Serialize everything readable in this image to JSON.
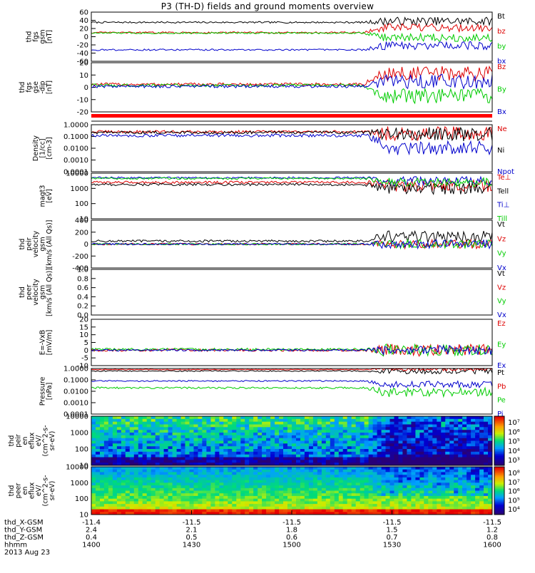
{
  "title": "P3 (TH-D) fields and ground moments overview",
  "colors": {
    "black": "#000000",
    "red": "#dd0000",
    "green": "#00cc00",
    "blue": "#0000cc",
    "bar_red": "#ff0000"
  },
  "chart_data": [
    {
      "type": "line",
      "id": "fgs_gsm",
      "ylabel": [
        "thd",
        "fgs",
        "gsm",
        "[nT]"
      ],
      "yticks": [
        "60",
        "40",
        "20",
        "0",
        "-20",
        "-40",
        "-60"
      ],
      "ylim": [
        -60,
        60
      ],
      "series": [
        {
          "name": "Bt",
          "color": "black",
          "level": 35,
          "noise": 2,
          "late_level": 38
        },
        {
          "name": "bz",
          "color": "red",
          "level": 10,
          "noise": 2,
          "late_level": 22
        },
        {
          "name": "by",
          "color": "green",
          "level": 9,
          "noise": 2,
          "late_level": -2
        },
        {
          "name": "bx",
          "color": "blue",
          "level": -32,
          "noise": 2,
          "late_level": -22
        }
      ]
    },
    {
      "type": "line",
      "id": "fgs_gse",
      "ylabel": [
        "thd",
        "fgs",
        "gse",
        "-dip",
        "[nT]"
      ],
      "yticks": [
        "20",
        "10",
        "0",
        "-10",
        "-20"
      ],
      "ylim": [
        -25,
        25
      ],
      "series": [
        {
          "name": "Bz",
          "color": "red",
          "level": 3,
          "noise": 1.5,
          "late_level": 14
        },
        {
          "name": "By",
          "color": "green",
          "level": 2,
          "noise": 1.5,
          "late_level": -9
        },
        {
          "name": "Bx",
          "color": "blue",
          "level": 1,
          "noise": 1.5,
          "late_level": 6
        }
      ]
    },
    {
      "type": "line",
      "id": "density",
      "log": true,
      "ylabel": [
        "Density",
        "[1/cc]",
        "[cm-3]"
      ],
      "yticks": [
        "1.0000",
        "0.1000",
        "0.0100",
        "0.0010",
        "0.0001"
      ],
      "ylim": [
        0.0001,
        1
      ],
      "series": [
        {
          "name": "Ne",
          "color": "red",
          "level": 0.25,
          "noise": 0.12,
          "late_level": 0.18
        },
        {
          "name": "Ni",
          "color": "black",
          "level": 0.22,
          "noise": 0.12,
          "late_level": 0.15
        },
        {
          "name": "Npot",
          "color": "blue",
          "level": 0.12,
          "noise": 0.12,
          "late_level": 0.01
        }
      ]
    },
    {
      "type": "line",
      "id": "temperature",
      "log": true,
      "ylabel": [
        "magt3",
        "[eV]"
      ],
      "yticks": [
        "10000",
        "1000",
        "100",
        "10"
      ],
      "ylim": [
        10,
        10000
      ],
      "series": [
        {
          "name": "Te⊥",
          "color": "red",
          "level": 2500,
          "noise": 0.08,
          "late_level": 1500
        },
        {
          "name": "Tell",
          "color": "black",
          "level": 1800,
          "noise": 0.08,
          "late_level": 1000
        },
        {
          "name": "Ti⊥",
          "color": "blue",
          "level": 5000,
          "noise": 0.06,
          "late_level": 3000
        },
        {
          "name": "Till",
          "color": "green",
          "level": 4500,
          "noise": 0.06,
          "late_level": 2500
        }
      ]
    },
    {
      "type": "line",
      "id": "peir_velocity",
      "ylabel": [
        "thd",
        "peir",
        "velocity",
        "gsm",
        "[km/s (All Qs)]"
      ],
      "yticks": [
        "400",
        "200",
        "0",
        "-200",
        "-400"
      ],
      "ylim": [
        -400,
        400
      ],
      "series": [
        {
          "name": "Vt",
          "color": "black",
          "level": 50,
          "noise": 20,
          "late_level": 120
        },
        {
          "name": "Vz",
          "color": "red",
          "level": 0,
          "noise": 15,
          "late_level": 0
        },
        {
          "name": "Vy",
          "color": "green",
          "level": 0,
          "noise": 15,
          "late_level": 0
        },
        {
          "name": "Vx",
          "color": "blue",
          "level": 0,
          "noise": 15,
          "late_level": 0
        }
      ]
    },
    {
      "type": "line",
      "id": "peer_velocity",
      "empty": true,
      "ylabel": [
        "thd",
        "peer",
        "velocity",
        "gsm",
        "[km/s (All Qs)]"
      ],
      "yticks": [
        "1.0",
        "0.8",
        "0.6",
        "0.4",
        "0.2",
        "0.0"
      ],
      "ylim": [
        0,
        1
      ],
      "series": [
        {
          "name": "Vt",
          "color": "black"
        },
        {
          "name": "Vz",
          "color": "red"
        },
        {
          "name": "Vy",
          "color": "green"
        },
        {
          "name": "Vx",
          "color": "blue"
        }
      ]
    },
    {
      "type": "line",
      "id": "efield",
      "ylabel": [
        "E=-VxB",
        "[mV/m]"
      ],
      "yticks": [
        "20",
        "15",
        "10",
        "5",
        "0",
        "-5",
        "-10"
      ],
      "ylim": [
        -10,
        20
      ],
      "series": [
        {
          "name": "Ez",
          "color": "red",
          "level": 0,
          "noise": 0.8,
          "late_level": 0
        },
        {
          "name": "Ey",
          "color": "green",
          "level": 0.5,
          "noise": 0.8,
          "late_level": 0
        },
        {
          "name": "Ex",
          "color": "blue",
          "level": 0,
          "noise": 0.6,
          "late_level": 0
        }
      ]
    },
    {
      "type": "line",
      "id": "pressure",
      "log": true,
      "ylabel": [
        "Pressure",
        "[nPa]"
      ],
      "yticks": [
        "1.0000",
        "0.1000",
        "0.0100",
        "0.0010",
        "0.0001"
      ],
      "ylim": [
        0.0001,
        1
      ],
      "series": [
        {
          "name": "Pt",
          "color": "black",
          "level": 0.6,
          "noise": 0.05,
          "late_level": 0.6
        },
        {
          "name": "Pb",
          "color": "red",
          "level": 0.8,
          "noise": 0.03,
          "late_level": 0.9
        },
        {
          "name": "Pe",
          "color": "green",
          "level": 0.02,
          "noise": 0.08,
          "late_level": 0.008
        },
        {
          "name": "Pi",
          "color": "blue",
          "level": 0.08,
          "noise": 0.06,
          "late_level": 0.04
        }
      ]
    },
    {
      "type": "heatmap",
      "id": "peir_en_eflux",
      "ylabel": [
        "thd",
        "peir",
        "en",
        "eflux",
        "eV/",
        "(cm^2-s-",
        "sr-eV)"
      ],
      "yticks": [
        "10000",
        "1000",
        "100",
        "10"
      ],
      "colorbar_ticks": [
        "10⁷",
        "10⁶",
        "10⁵",
        "10⁴",
        "10³"
      ]
    },
    {
      "type": "heatmap",
      "id": "peer_en_eflux",
      "ylabel": [
        "thd",
        "peer",
        "en",
        "eflux",
        "eV/",
        "(cm^2-s-",
        "sr-eV)"
      ],
      "yticks": [
        "10000",
        "1000",
        "100",
        "10"
      ],
      "colorbar_ticks": [
        "10⁸",
        "10⁷",
        "10⁶",
        "10⁵",
        "10⁴"
      ]
    }
  ],
  "x_axis": {
    "rows": [
      {
        "label": "thd_X-GSM",
        "values": [
          "-11.4",
          "-11.5",
          "-11.5",
          "-11.5",
          "-11.5"
        ]
      },
      {
        "label": "thd_Y-GSM",
        "values": [
          "2.4",
          "2.1",
          "1.8",
          "1.5",
          "1.2"
        ]
      },
      {
        "label": "thd_Z-GSM",
        "values": [
          "0.4",
          "0.5",
          "0.6",
          "0.7",
          "0.8"
        ]
      },
      {
        "label": "hhmm",
        "values": [
          "1400",
          "1430",
          "1500",
          "1530",
          "1600"
        ]
      }
    ],
    "date": "2013 Aug 23"
  }
}
